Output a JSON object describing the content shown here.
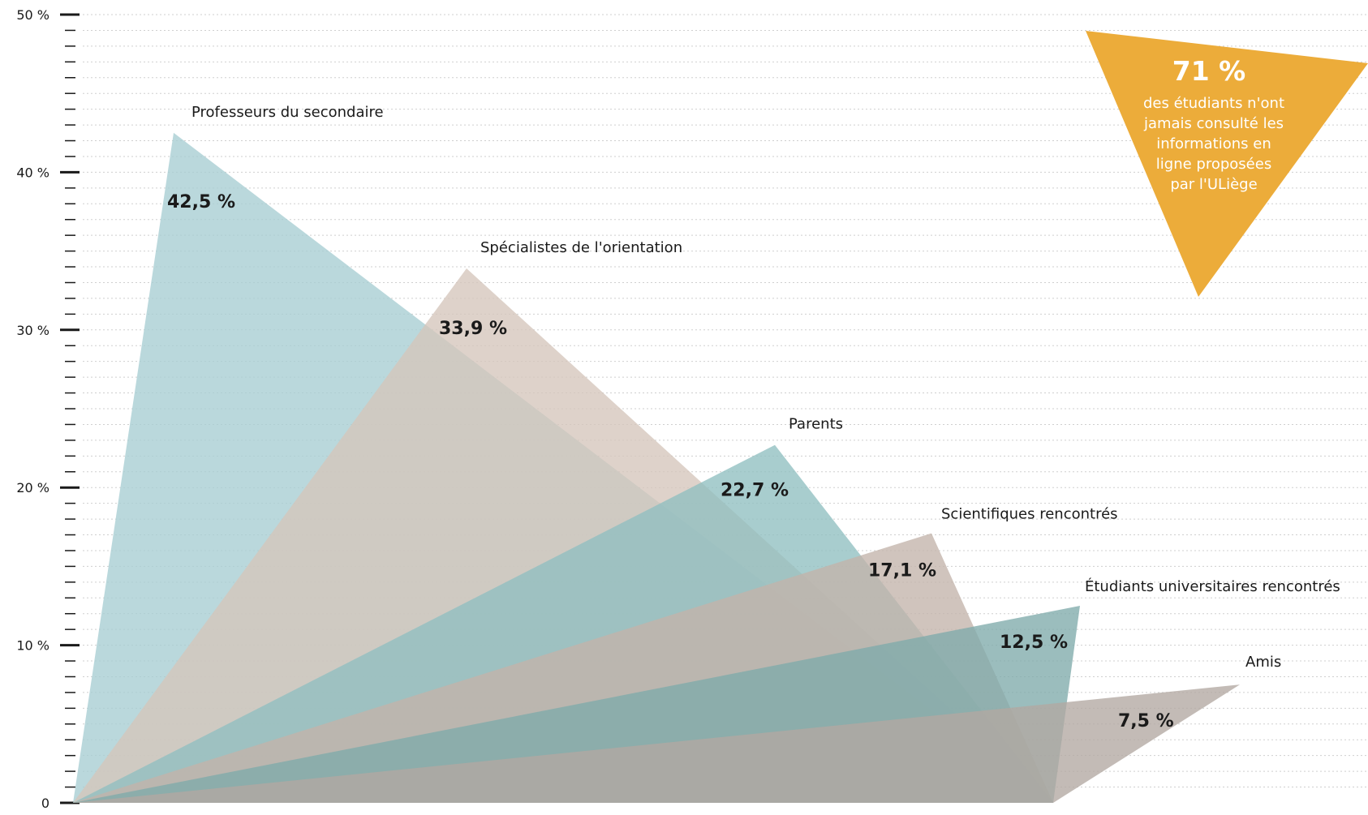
{
  "chart_data": {
    "type": "area",
    "yaxis": {
      "ylim": [
        0,
        50
      ],
      "tick_labels": [
        "0",
        "10 %",
        "20 %",
        "30 %",
        "40 %",
        "50 %"
      ],
      "tick_values": [
        0,
        10,
        20,
        30,
        40,
        50
      ]
    },
    "grid": "horizontal dotted",
    "series": [
      {
        "name": "Professeurs du secondaire",
        "value": 42.5,
        "value_label": "42,5 %",
        "color": "#a6cdd2"
      },
      {
        "name": "Spécialistes de l'orientation",
        "value": 33.9,
        "value_label": "33,9 %",
        "color": "#d5c5bb"
      },
      {
        "name": "Parents",
        "value": 22.7,
        "value_label": "22,7 %",
        "color": "#8fbfc0"
      },
      {
        "name": "Scientifiques rencontrés",
        "value": 17.1,
        "value_label": "17,1 %",
        "color": "#c3b3aa"
      },
      {
        "name": "Étudiants universitaires rencontrés",
        "value": 12.5,
        "value_label": "12,5 %",
        "color": "#7fabab"
      },
      {
        "name": "Amis",
        "value": 7.5,
        "value_label": "7,5 %",
        "color": "#b2a8a2"
      }
    ],
    "callout": {
      "value": "71 %",
      "lines": [
        "des étudiants n'ont",
        "jamais consulté les",
        "informations en",
        "ligne proposées",
        "par l'ULiège"
      ],
      "color": "#ecac3a"
    }
  }
}
